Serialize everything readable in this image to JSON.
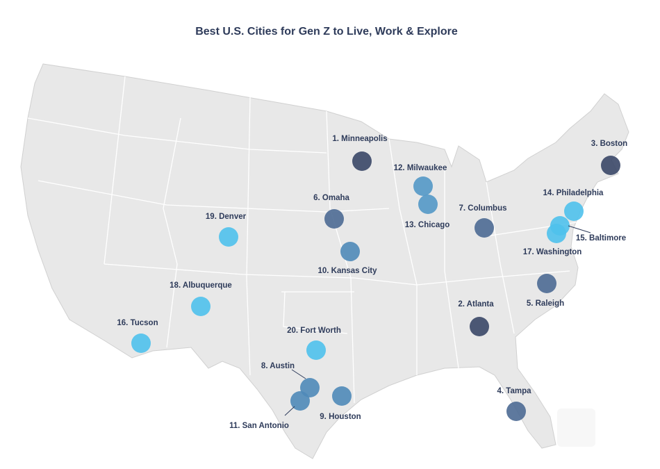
{
  "title": "Best U.S. Cities for Gen Z to Live, Work & Explore",
  "cities": [
    {
      "label": "1. Minneapolis",
      "color": "#3a4767"
    },
    {
      "label": "2. Atlanta",
      "color": "#3a4767"
    },
    {
      "label": "3. Boston",
      "color": "#3a4767"
    },
    {
      "label": "4. Tampa",
      "color": "#4c6a93"
    },
    {
      "label": "5. Raleigh",
      "color": "#4c6a93"
    },
    {
      "label": "6. Omaha",
      "color": "#4c6a93"
    },
    {
      "label": "7. Columbus",
      "color": "#4c6a93"
    },
    {
      "label": "8. Austin",
      "color": "#4f8ab8"
    },
    {
      "label": "9. Houston",
      "color": "#4f8ab8"
    },
    {
      "label": "10. Kansas City",
      "color": "#4f8ab8"
    },
    {
      "label": "11. San Antonio",
      "color": "#4f8ab8"
    },
    {
      "label": "12. Milwaukee",
      "color": "#5398c6"
    },
    {
      "label": "13. Chicago",
      "color": "#5398c6"
    },
    {
      "label": "14. Philadelphia",
      "color": "#4fc1ec"
    },
    {
      "label": "15. Baltimore",
      "color": "#4fc1ec"
    },
    {
      "label": "16. Tucson",
      "color": "#4fc1ec"
    },
    {
      "label": "17. Washington",
      "color": "#4fc1ec"
    },
    {
      "label": "18. Albuquerque",
      "color": "#4fc1ec"
    },
    {
      "label": "19. Denver",
      "color": "#4fc1ec"
    },
    {
      "label": "20. Fort Worth",
      "color": "#4fc1ec"
    }
  ]
}
